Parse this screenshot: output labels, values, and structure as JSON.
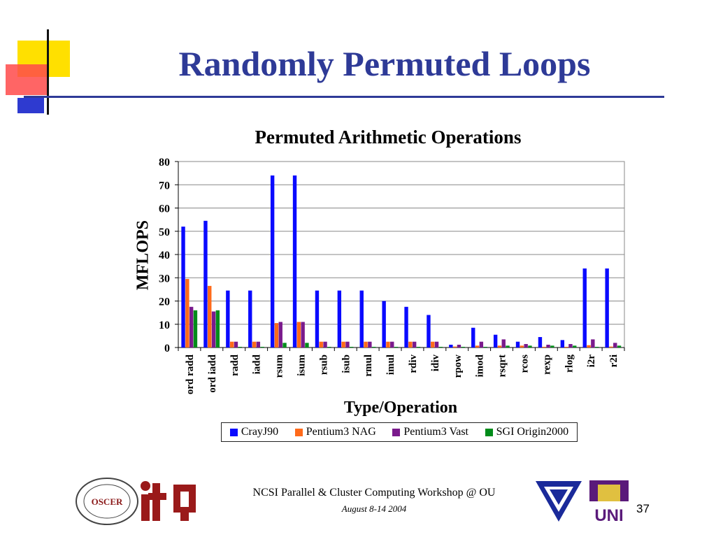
{
  "slide": {
    "title": "Randomly Permuted Loops",
    "footer": "NCSI Parallel & Cluster Computing Workshop @ OU",
    "date": "August 8-14 2004",
    "page_number": "37"
  },
  "logos": {
    "oscer_seal": "SUPERCOMPUTING CENTER FOR EDUCATION & RESEARCH",
    "oscer_center": "OSCER",
    "uni": "UNI"
  },
  "colors": {
    "title": "#2e3a97",
    "series": [
      "#0a0aff",
      "#ff6a1a",
      "#7a1a8c",
      "#008c1a"
    ]
  },
  "chart_data": {
    "type": "bar",
    "title": "Permuted Arithmetic Operations",
    "xlabel": "Type/Operation",
    "ylabel": "MFLOPS",
    "ylim": [
      0,
      80
    ],
    "yticks": [
      0,
      10,
      20,
      30,
      40,
      50,
      60,
      70,
      80
    ],
    "grid": true,
    "legend_position": "bottom",
    "categories": [
      "ord radd",
      "ord iadd",
      "radd",
      "iadd",
      "rsum",
      "isum",
      "rsub",
      "isub",
      "rmul",
      "imul",
      "rdiv",
      "idiv",
      "rpow",
      "imod",
      "rsqrt",
      "rcos",
      "rexp",
      "rlog",
      "i2r",
      "r2i"
    ],
    "series": [
      {
        "name": "CrayJ90",
        "values": [
          52,
          54.5,
          24.5,
          24.5,
          74,
          74,
          24.5,
          24.5,
          24.5,
          20,
          17.5,
          14,
          1.2,
          8.5,
          5.5,
          2.5,
          4.5,
          3.2,
          34,
          34
        ]
      },
      {
        "name": "Pentium3 NAG",
        "values": [
          29.5,
          26.5,
          2.5,
          2.5,
          10.5,
          11,
          2.5,
          2.5,
          2.5,
          2.5,
          2.5,
          2.5,
          0.4,
          0.8,
          0.8,
          0.8,
          0.3,
          0.3,
          1,
          0.4
        ]
      },
      {
        "name": "Pentium3 Vast",
        "values": [
          17.5,
          15.5,
          2.5,
          2.5,
          11,
          11,
          2.5,
          2.5,
          2.5,
          2.5,
          2.5,
          2.5,
          1.2,
          2.5,
          3.5,
          1.5,
          1.2,
          1.5,
          3.5,
          2
        ]
      },
      {
        "name": "SGI Origin2000",
        "values": [
          16,
          16,
          0.3,
          0.3,
          2,
          2,
          0.3,
          0.3,
          0.3,
          0.3,
          0.3,
          0.3,
          0.3,
          0.3,
          0.8,
          0.8,
          0.8,
          0.8,
          0.3,
          0.8
        ]
      }
    ]
  }
}
